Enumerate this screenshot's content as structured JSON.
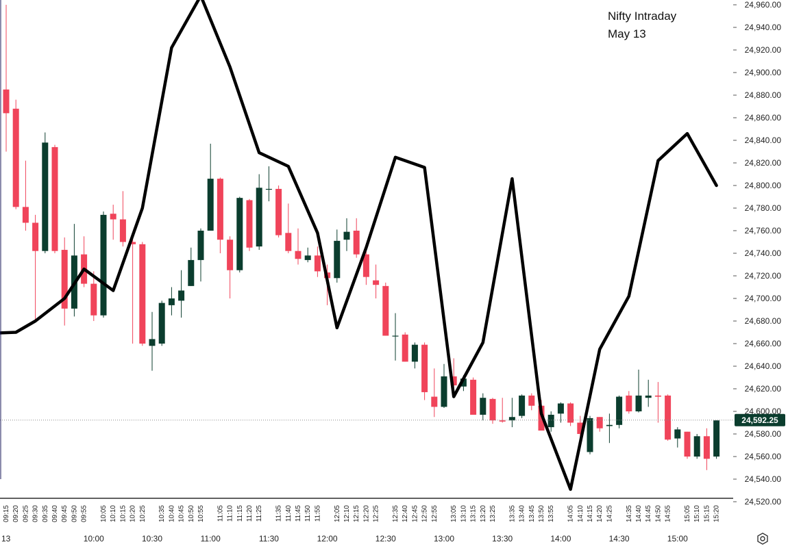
{
  "annotation": {
    "line1": "Nifty Intraday",
    "line2": "May 13"
  },
  "price_label": "24,592.25",
  "date_label": "13",
  "colors": {
    "up": "#0b3d2e",
    "down": "#f0445a",
    "overlay_line": "#000000",
    "price_tag": "#0b3d2e",
    "grid_text": "#222222"
  },
  "chart_data": {
    "type": "candlestick",
    "title": "",
    "xlabel": "",
    "ylabel": "",
    "ylim": [
      24510,
      24975
    ],
    "y_ticks": [
      24520,
      24540,
      24560,
      24580,
      24600,
      24620,
      24640,
      24660,
      24680,
      24700,
      24720,
      24740,
      24760,
      24780,
      24800,
      24820,
      24840,
      24860,
      24880,
      24900,
      24920,
      24940,
      24960
    ],
    "y_tick_labels": [
      "24,520.00",
      "24,540.00",
      "24,560.00",
      "24,580.00",
      "24,600.00",
      "24,620.00",
      "24,640.00",
      "24,660.00",
      "24,680.00",
      "24,700.00",
      "24,720.00",
      "24,740.00",
      "24,760.00",
      "24,780.00",
      "24,800.00",
      "24,820.00",
      "24,840.00",
      "24,860.00",
      "24,880.00",
      "24,900.00",
      "24,920.00",
      "24,940.00",
      "24,960.00"
    ],
    "last_price": 24592.25,
    "x_major_labels": [
      "10:00",
      "10:30",
      "11:00",
      "11:30",
      "12:00",
      "12:30",
      "13:00",
      "13:30",
      "14:00",
      "14:30",
      "15:00"
    ],
    "series": [
      {
        "name": "",
        "candles": [
          {
            "t": "09:15",
            "o": 24885,
            "h": 24960,
            "l": 24830,
            "c": 24864
          },
          {
            "t": "09:20",
            "o": 24868,
            "h": 24876,
            "l": 24779,
            "c": 24781
          },
          {
            "t": "09:25",
            "o": 24781,
            "h": 24822,
            "l": 24760,
            "c": 24767
          },
          {
            "t": "09:30",
            "o": 24767,
            "h": 24774,
            "l": 24679,
            "c": 24742
          },
          {
            "t": "09:35",
            "o": 24742,
            "h": 24847,
            "l": 24740,
            "c": 24838
          },
          {
            "t": "09:40",
            "o": 24834,
            "h": 24836,
            "l": 24740,
            "c": 24742
          },
          {
            "t": "09:45",
            "o": 24743,
            "h": 24754,
            "l": 24676,
            "c": 24691
          },
          {
            "t": "09:50",
            "o": 24691,
            "h": 24766,
            "l": 24684,
            "c": 24738
          },
          {
            "t": "09:55",
            "o": 24739,
            "h": 24755,
            "l": 24710,
            "c": 24713
          },
          {
            "t": "10:00",
            "o": 24713,
            "h": 24724,
            "l": 24680,
            "c": 24685
          },
          {
            "t": "10:05",
            "o": 24685,
            "h": 24777,
            "l": 24683,
            "c": 24774
          },
          {
            "t": "10:10",
            "o": 24775,
            "h": 24783,
            "l": 24752,
            "c": 24770
          },
          {
            "t": "10:15",
            "o": 24770,
            "h": 24795,
            "l": 24746,
            "c": 24750
          },
          {
            "t": "10:20",
            "o": 24750,
            "h": 24758,
            "l": 24660,
            "c": 24748
          },
          {
            "t": "10:25",
            "o": 24748,
            "h": 24750,
            "l": 24658,
            "c": 24660
          },
          {
            "t": "10:30",
            "o": 24658,
            "h": 24688,
            "l": 24636,
            "c": 24664
          },
          {
            "t": "10:35",
            "o": 24660,
            "h": 24698,
            "l": 24658,
            "c": 24696
          },
          {
            "t": "10:40",
            "o": 24694,
            "h": 24710,
            "l": 24685,
            "c": 24700
          },
          {
            "t": "10:45",
            "o": 24698,
            "h": 24725,
            "l": 24683,
            "c": 24707
          },
          {
            "t": "10:50",
            "o": 24711,
            "h": 24745,
            "l": 24711,
            "c": 24734
          },
          {
            "t": "10:55",
            "o": 24734,
            "h": 24762,
            "l": 24715,
            "c": 24760
          },
          {
            "t": "11:00",
            "o": 24760,
            "h": 24837,
            "l": 24760,
            "c": 24806
          },
          {
            "t": "11:05",
            "o": 24806,
            "h": 24807,
            "l": 24740,
            "c": 24752
          },
          {
            "t": "11:10",
            "o": 24752,
            "h": 24755,
            "l": 24700,
            "c": 24725
          },
          {
            "t": "11:15",
            "o": 24725,
            "h": 24790,
            "l": 24723,
            "c": 24789
          },
          {
            "t": "11:20",
            "o": 24787,
            "h": 24788,
            "l": 24742,
            "c": 24745
          },
          {
            "t": "11:25",
            "o": 24746,
            "h": 24810,
            "l": 24743,
            "c": 24798
          },
          {
            "t": "11:30",
            "o": 24797,
            "h": 24817,
            "l": 24786,
            "c": 24797
          },
          {
            "t": "11:35",
            "o": 24797,
            "h": 24800,
            "l": 24754,
            "c": 24756
          },
          {
            "t": "11:40",
            "o": 24758,
            "h": 24784,
            "l": 24740,
            "c": 24742
          },
          {
            "t": "11:45",
            "o": 24742,
            "h": 24762,
            "l": 24730,
            "c": 24735
          },
          {
            "t": "11:50",
            "o": 24734,
            "h": 24745,
            "l": 24732,
            "c": 24738
          },
          {
            "t": "11:55",
            "o": 24738,
            "h": 24746,
            "l": 24719,
            "c": 24724
          },
          {
            "t": "12:00",
            "o": 24723,
            "h": 24730,
            "l": 24694,
            "c": 24718
          },
          {
            "t": "12:05",
            "o": 24718,
            "h": 24761,
            "l": 24714,
            "c": 24751
          },
          {
            "t": "12:10",
            "o": 24752,
            "h": 24771,
            "l": 24742,
            "c": 24759
          },
          {
            "t": "12:15",
            "o": 24760,
            "h": 24771,
            "l": 24736,
            "c": 24739
          },
          {
            "t": "12:20",
            "o": 24739,
            "h": 24746,
            "l": 24712,
            "c": 24719
          },
          {
            "t": "12:25",
            "o": 24716,
            "h": 24730,
            "l": 24700,
            "c": 24712
          },
          {
            "t": "12:30",
            "o": 24711,
            "h": 24714,
            "l": 24667,
            "c": 24667
          },
          {
            "t": "12:35",
            "o": 24667,
            "h": 24687,
            "l": 24645,
            "c": 24667
          },
          {
            "t": "12:40",
            "o": 24668,
            "h": 24670,
            "l": 24644,
            "c": 24644
          },
          {
            "t": "12:45",
            "o": 24644,
            "h": 24661,
            "l": 24638,
            "c": 24659
          },
          {
            "t": "12:50",
            "o": 24659,
            "h": 24661,
            "l": 24610,
            "c": 24617
          },
          {
            "t": "12:55",
            "o": 24613,
            "h": 24638,
            "l": 24595,
            "c": 24604
          },
          {
            "t": "13:00",
            "o": 24604,
            "h": 24642,
            "l": 24603,
            "c": 24631
          },
          {
            "t": "13:05",
            "o": 24631,
            "h": 24647,
            "l": 24620,
            "c": 24623
          },
          {
            "t": "13:10",
            "o": 24622,
            "h": 24632,
            "l": 24618,
            "c": 24629
          },
          {
            "t": "13:15",
            "o": 24628,
            "h": 24630,
            "l": 24598,
            "c": 24597
          },
          {
            "t": "13:20",
            "o": 24597,
            "h": 24616,
            "l": 24592,
            "c": 24612
          },
          {
            "t": "13:25",
            "o": 24611,
            "h": 24612,
            "l": 24589,
            "c": 24592
          },
          {
            "t": "13:30",
            "o": 24592,
            "h": 24612,
            "l": 24590,
            "c": 24591
          },
          {
            "t": "13:35",
            "o": 24592,
            "h": 24612,
            "l": 24586,
            "c": 24595
          },
          {
            "t": "13:40",
            "o": 24596,
            "h": 24615,
            "l": 24594,
            "c": 24614
          },
          {
            "t": "13:45",
            "o": 24614,
            "h": 24616,
            "l": 24601,
            "c": 24605
          },
          {
            "t": "13:50",
            "o": 24605,
            "h": 24610,
            "l": 24583,
            "c": 24583
          },
          {
            "t": "13:55",
            "o": 24586,
            "h": 24600,
            "l": 24582,
            "c": 24597
          },
          {
            "t": "14:00",
            "o": 24598,
            "h": 24608,
            "l": 24590,
            "c": 24607
          },
          {
            "t": "14:05",
            "o": 24607,
            "h": 24608,
            "l": 24587,
            "c": 24590
          },
          {
            "t": "14:10",
            "o": 24590,
            "h": 24596,
            "l": 24576,
            "c": 24580
          },
          {
            "t": "14:15",
            "o": 24564,
            "h": 24596,
            "l": 24562,
            "c": 24594
          },
          {
            "t": "14:20",
            "o": 24595,
            "h": 24595,
            "l": 24582,
            "c": 24585
          },
          {
            "t": "14:25",
            "o": 24587,
            "h": 24598,
            "l": 24572,
            "c": 24588
          },
          {
            "t": "14:30",
            "o": 24588,
            "h": 24614,
            "l": 24585,
            "c": 24613
          },
          {
            "t": "14:35",
            "o": 24614,
            "h": 24618,
            "l": 24598,
            "c": 24600
          },
          {
            "t": "14:40",
            "o": 24600,
            "h": 24637,
            "l": 24599,
            "c": 24614
          },
          {
            "t": "14:45",
            "o": 24612,
            "h": 24628,
            "l": 24604,
            "c": 24614
          },
          {
            "t": "14:50",
            "o": 24614,
            "h": 24626,
            "l": 24590,
            "c": 24613
          },
          {
            "t": "14:55",
            "o": 24614,
            "h": 24615,
            "l": 24574,
            "c": 24575
          },
          {
            "t": "15:00",
            "o": 24576,
            "h": 24586,
            "l": 24568,
            "c": 24584
          },
          {
            "t": "15:05",
            "o": 24582,
            "h": 24582,
            "l": 24558,
            "c": 24560
          },
          {
            "t": "15:10",
            "o": 24560,
            "h": 24580,
            "l": 24558,
            "c": 24578
          },
          {
            "t": "15:15",
            "o": 24578,
            "h": 24585,
            "l": 24548,
            "c": 24558
          },
          {
            "t": "15:20",
            "o": 24560,
            "h": 24592,
            "l": 24558,
            "c": 24592
          }
        ]
      }
    ],
    "overlay_line": [
      {
        "t": "09:05",
        "y": 24669
      },
      {
        "t": "09:20",
        "y": 24670
      },
      {
        "t": "09:30",
        "y": 24680
      },
      {
        "t": "09:45",
        "y": 24700
      },
      {
        "t": "09:55",
        "y": 24726
      },
      {
        "t": "10:10",
        "y": 24707
      },
      {
        "t": "10:25",
        "y": 24780
      },
      {
        "t": "10:40",
        "y": 24922
      },
      {
        "t": "10:55",
        "y": 24968
      },
      {
        "t": "11:10",
        "y": 24905
      },
      {
        "t": "11:25",
        "y": 24829
      },
      {
        "t": "11:40",
        "y": 24817
      },
      {
        "t": "11:55",
        "y": 24758
      },
      {
        "t": "12:05",
        "y": 24674
      },
      {
        "t": "12:20",
        "y": 24745
      },
      {
        "t": "12:35",
        "y": 24825
      },
      {
        "t": "12:50",
        "y": 24816
      },
      {
        "t": "13:05",
        "y": 24613
      },
      {
        "t": "13:20",
        "y": 24661
      },
      {
        "t": "13:35",
        "y": 24806
      },
      {
        "t": "13:50",
        "y": 24598
      },
      {
        "t": "14:05",
        "y": 24531
      },
      {
        "t": "14:20",
        "y": 24655
      },
      {
        "t": "14:35",
        "y": 24702
      },
      {
        "t": "14:50",
        "y": 24822
      },
      {
        "t": "15:05",
        "y": 24846
      },
      {
        "t": "15:20",
        "y": 24800
      }
    ]
  }
}
